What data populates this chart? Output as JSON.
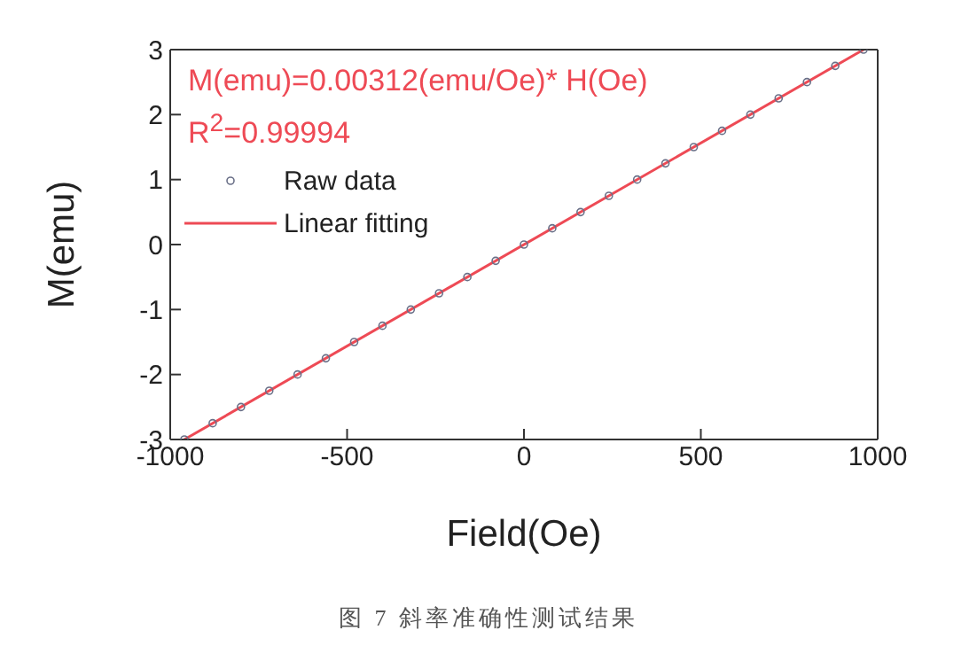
{
  "chart_data": {
    "type": "scatter",
    "xlabel": "Field(Oe)",
    "ylabel": "M(emu)",
    "xlim": [
      -1000,
      1000
    ],
    "xticks": [
      -1000,
      -500,
      0,
      500,
      1000
    ],
    "ylim": [
      -3,
      3
    ],
    "yticks": [
      -3,
      -2,
      -1,
      0,
      1,
      2,
      3
    ],
    "legend": "top left",
    "series": [
      {
        "name": "Raw data",
        "marker": "circle",
        "color": "#6a7088",
        "x": [
          -960,
          -880,
          -800,
          -720,
          -640,
          -560,
          -480,
          -400,
          -320,
          -240,
          -160,
          -80,
          0,
          80,
          160,
          240,
          320,
          400,
          480,
          560,
          640,
          720,
          800,
          880,
          960
        ],
        "values": [
          -3.0,
          -2.75,
          -2.5,
          -2.25,
          -2.0,
          -1.75,
          -1.5,
          -1.25,
          -1.0,
          -0.75,
          -0.5,
          -0.25,
          0,
          0.25,
          0.5,
          0.75,
          1.0,
          1.25,
          1.5,
          1.75,
          2.0,
          2.25,
          2.5,
          2.75,
          3.0
        ]
      },
      {
        "name": "Linear fitting",
        "type": "line",
        "marker": "none",
        "color": "#ee4a55",
        "x": [
          -960,
          960
        ],
        "values": [
          -3.0,
          3.0
        ]
      }
    ],
    "annotations": [
      "M(emu)=0.00312(emu/Oe)* H(Oe)",
      "R$^{2}$=0.99994",
      "图 7 斜率准确性测试结果"
    ]
  }
}
